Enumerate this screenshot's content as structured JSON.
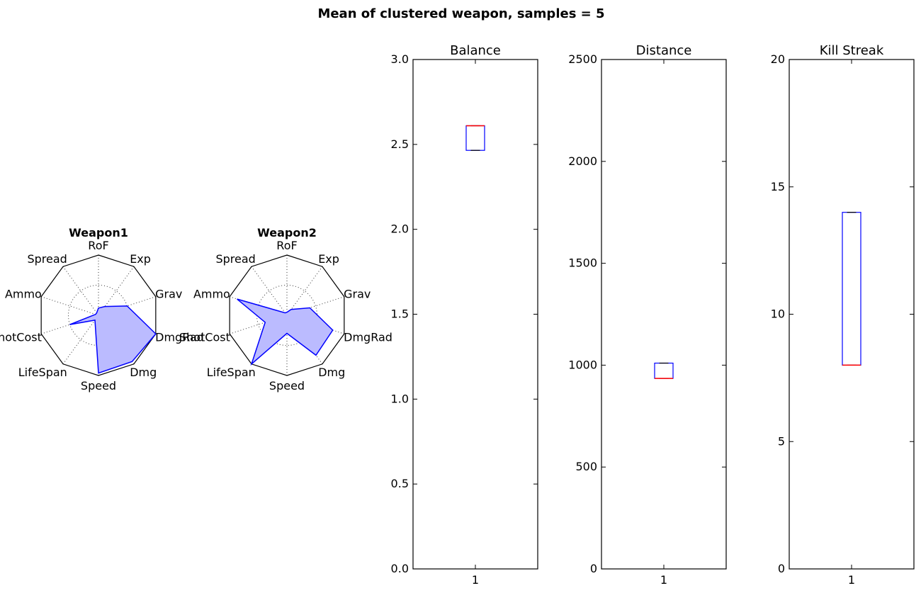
{
  "suptitle": "Mean of clustered weapon, samples = 5",
  "chart_data": [
    {
      "type": "radar",
      "title": "Weapon1",
      "axes": [
        "RoF",
        "Exp",
        "Grav",
        "DmgRad",
        "Dmg",
        "Speed",
        "LifeSpan",
        "ShotCost",
        "Ammo",
        "Spread"
      ],
      "rmax": 1.0,
      "rings": [
        0.5,
        1.0
      ],
      "values": [
        0.12,
        0.18,
        0.5,
        1.0,
        0.95,
        0.96,
        0.1,
        0.5,
        0.05,
        0.05
      ],
      "colors": {
        "line": "#0000ff",
        "fill": "#bbbbff"
      }
    },
    {
      "type": "radar",
      "title": "Weapon2",
      "axes": [
        "RoF",
        "Exp",
        "Grav",
        "DmgRad",
        "Dmg",
        "Speed",
        "LifeSpan",
        "ShotCost",
        "Ammo",
        "Spread"
      ],
      "rmax": 1.0,
      "rings": [
        0.5,
        1.0
      ],
      "values": [
        0.05,
        0.12,
        0.4,
        0.8,
        0.82,
        0.3,
        1.0,
        0.38,
        0.87,
        0.05
      ],
      "colors": {
        "line": "#0000ff",
        "fill": "#bbbbff"
      }
    },
    {
      "type": "box",
      "title": "Balance",
      "categories": [
        "1"
      ],
      "ylim": [
        0,
        3.0
      ],
      "yticks": [
        0.0,
        0.5,
        1.0,
        1.5,
        2.0,
        2.5,
        3.0
      ],
      "ytick_labels": [
        "0.0",
        "0.5",
        "1.0",
        "1.5",
        "2.0",
        "2.5",
        "3.0"
      ],
      "box": {
        "q1": 2.465,
        "q3": 2.61,
        "median": 2.61,
        "whisker_low": 2.465,
        "whisker_high": 2.61
      },
      "colors": {
        "box": "#0000ff",
        "median": "#ff0000",
        "whisker": "#000000"
      }
    },
    {
      "type": "box",
      "title": "Distance",
      "categories": [
        "1"
      ],
      "ylim": [
        0,
        2500
      ],
      "yticks": [
        0,
        500,
        1000,
        1500,
        2000,
        2500
      ],
      "ytick_labels": [
        "0",
        "500",
        "1000",
        "1500",
        "2000",
        "2500"
      ],
      "box": {
        "q1": 935,
        "q3": 1010,
        "median": 935,
        "whisker_low": 935,
        "whisker_high": 1010
      },
      "colors": {
        "box": "#0000ff",
        "median": "#ff0000",
        "whisker": "#000000"
      }
    },
    {
      "type": "box",
      "title": "Kill Streak",
      "categories": [
        "1"
      ],
      "ylim": [
        0,
        20
      ],
      "yticks": [
        0,
        5,
        10,
        15,
        20
      ],
      "ytick_labels": [
        "0",
        "5",
        "10",
        "15",
        "20"
      ],
      "box": {
        "q1": 8,
        "q3": 14,
        "median": 8,
        "whisker_low": 8,
        "whisker_high": 14
      },
      "colors": {
        "box": "#0000ff",
        "median": "#ff0000",
        "whisker": "#000000"
      }
    }
  ]
}
